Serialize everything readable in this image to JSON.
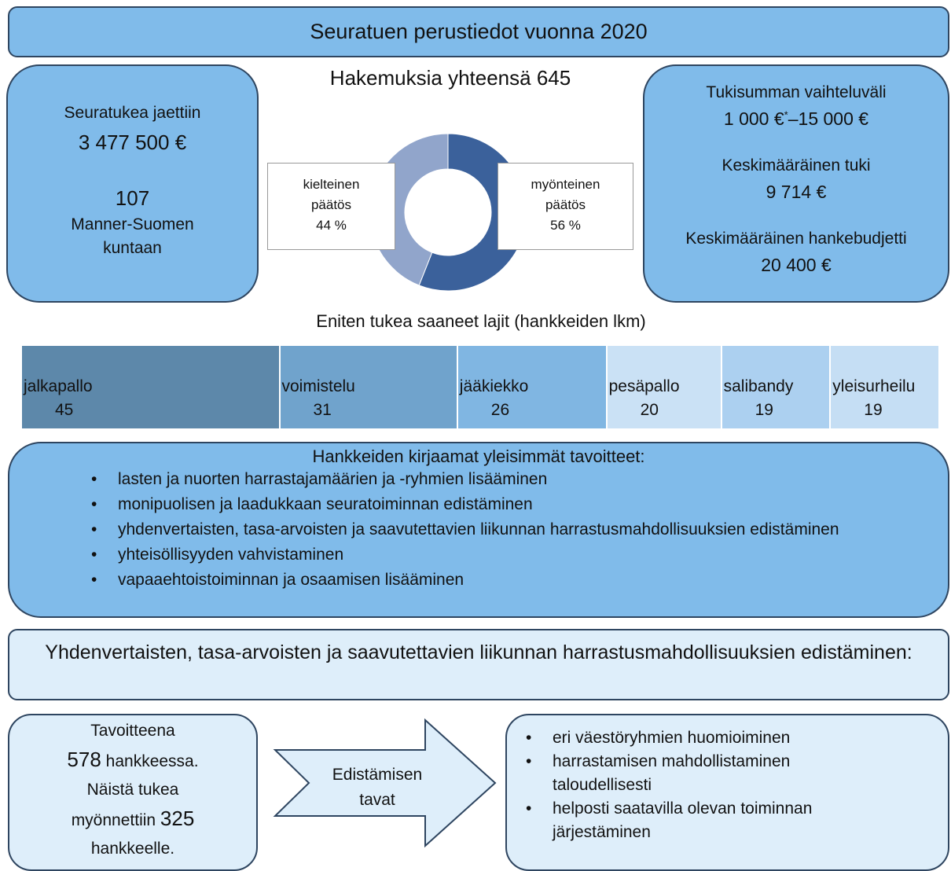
{
  "header": {
    "title": "Seuratuen perustiedot vuonna 2020"
  },
  "left_box": {
    "line1": "Seuratukea jaettiin",
    "amount": "3 477 500 €",
    "count": "107",
    "line2": "Manner-Suomen",
    "line3": "kuntaan"
  },
  "right_box": {
    "range_label": "Tukisumman vaihteluväli",
    "range_from": "1 000 €",
    "range_note": "*",
    "range_to": "–15 000 €",
    "avg_label": "Keskimääräinen tuki",
    "avg_value": "9 714 €",
    "budget_label": "Keskimääräinen hankebudjetti",
    "budget_value": "20 400 €"
  },
  "chart_data": [
    {
      "type": "donut",
      "title": "Hakemuksia yhteensä 645",
      "categories": [
        "myönteinen päätös",
        "kielteinen päätös"
      ],
      "values": [
        56,
        44
      ],
      "value_labels": [
        "56 %",
        "44 %"
      ],
      "colors": [
        "#3b619b",
        "#91a5cb"
      ]
    },
    {
      "type": "bar",
      "title": "Eniten tukea saaneet lajit (hankkeiden lkm)",
      "categories": [
        "jalkapallo",
        "voimistelu",
        "jääkiekko",
        "pesäpallo",
        "salibandy",
        "yleisurheilu"
      ],
      "values": [
        45,
        31,
        26,
        20,
        19,
        19
      ],
      "colors": [
        "#5d88aa",
        "#70a3cc",
        "#80b6e2",
        "#cae1f5",
        "#acd0f0",
        "#c5def4"
      ]
    }
  ],
  "goals": {
    "title": "Hankkeiden kirjaamat yleisimmät tavoitteet:",
    "items": [
      "lasten ja nuorten harrastajamäärien ja -ryhmien lisääminen",
      "monipuolisen ja laadukkaan seuratoiminnan edistäminen",
      "yhdenvertaisten, tasa-arvoisten ja saavutettavien liikunnan harrastusmahdollisuuksien edistäminen",
      "yhteisöllisyyden vahvistaminen",
      "vapaaehtoistoiminnan ja osaamisen lisääminen"
    ]
  },
  "equality": {
    "title": "Yhdenvertaisten, tasa-arvoisten ja saavutettavien liikunnan harrastusmahdollisuuksien edistäminen:"
  },
  "target_box": {
    "line1": "Tavoitteena",
    "n1": "578",
    "t1": "hankkeessa.",
    "line3": "Näistä tukea",
    "t2": "myönnettiin",
    "n2": "325",
    "line5": "hankkeelle."
  },
  "arrow": {
    "label": "Edistämisen tavat"
  },
  "methods": {
    "items": [
      "eri väestöryhmien huomioiminen",
      "harrastamisen mahdollistaminen taloudellisesti",
      "helposti saatavilla olevan toiminnan järjestäminen"
    ]
  }
}
